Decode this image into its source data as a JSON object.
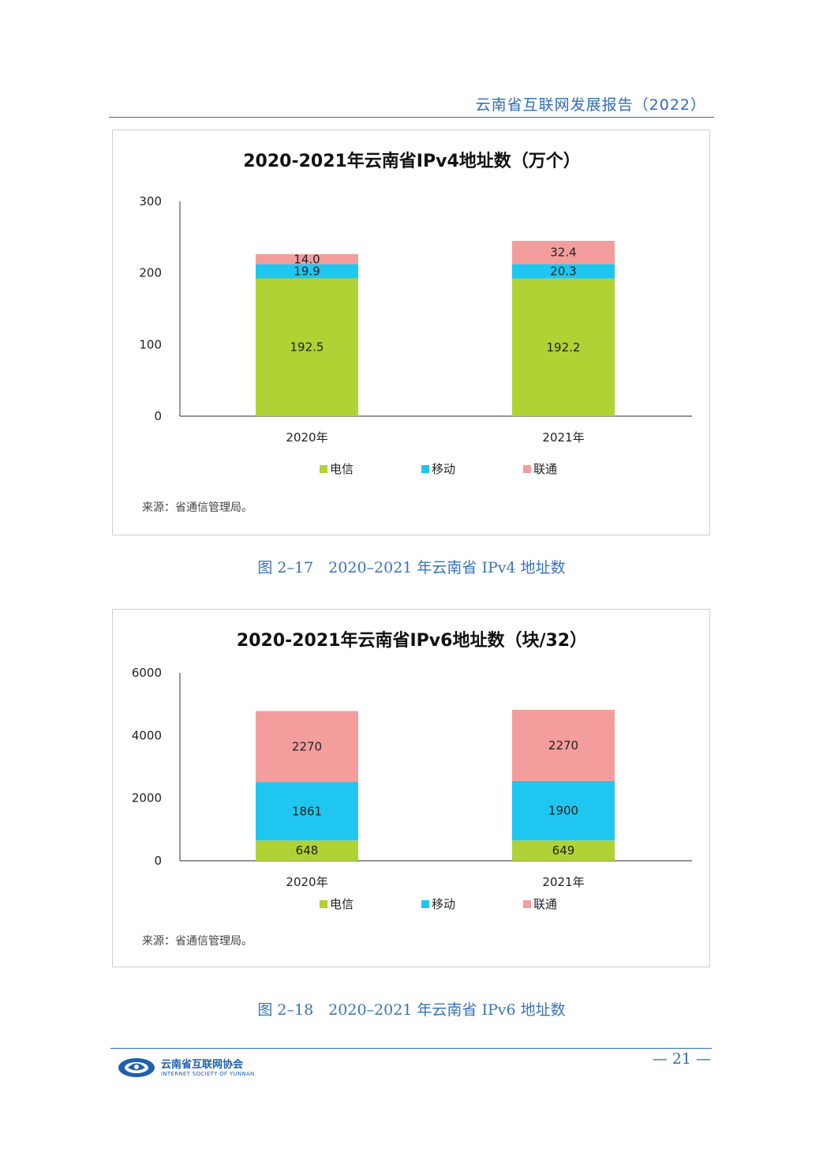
{
  "header": {
    "title": "云南省互联网发展报告（2022）"
  },
  "footer": {
    "org_cn": "云南省互联网协会",
    "org_en": "INTERNET SOCIETY OF YUNNAN",
    "page": "— 21 —"
  },
  "colors": {
    "telecom": "#b0d235",
    "mobile": "#1fc6ef",
    "unicom": "#f39d9d",
    "accent": "#2f6db5"
  },
  "chart_data": [
    {
      "type": "bar",
      "stacked": true,
      "title": "2020-2021年云南省IPv4地址数（万个）",
      "categories": [
        "2020年",
        "2021年"
      ],
      "series": [
        {
          "name": "电信",
          "values": [
            192.5,
            192.2
          ],
          "labels": [
            "192.5",
            "192.2"
          ]
        },
        {
          "name": "移动",
          "values": [
            19.9,
            20.3
          ],
          "labels": [
            "19.9",
            "20.3"
          ]
        },
        {
          "name": "联通",
          "values": [
            14.0,
            32.4
          ],
          "labels": [
            "14.0",
            "32.4"
          ]
        }
      ],
      "ylim": [
        0,
        300
      ],
      "yticks": [
        "0",
        "100",
        "200",
        "300"
      ],
      "legend": "bottom",
      "source": "来源：省通信管理局。",
      "caption": "图 2–17　2020–2021 年云南省 IPv4 地址数"
    },
    {
      "type": "bar",
      "stacked": true,
      "title": "2020-2021年云南省IPv6地址数（块/32）",
      "categories": [
        "2020年",
        "2021年"
      ],
      "series": [
        {
          "name": "电信",
          "values": [
            648,
            649
          ],
          "labels": [
            "648",
            "649"
          ]
        },
        {
          "name": "移动",
          "values": [
            1861,
            1900
          ],
          "labels": [
            "1861",
            "1900"
          ]
        },
        {
          "name": "联通",
          "values": [
            2270,
            2270
          ],
          "labels": [
            "2270",
            "2270"
          ]
        }
      ],
      "ylim": [
        0,
        6000
      ],
      "yticks": [
        "0",
        "2000",
        "4000",
        "6000"
      ],
      "legend": "bottom",
      "source": "来源：省通信管理局。",
      "caption": "图 2–18　2020–2021 年云南省 IPv6 地址数"
    }
  ]
}
